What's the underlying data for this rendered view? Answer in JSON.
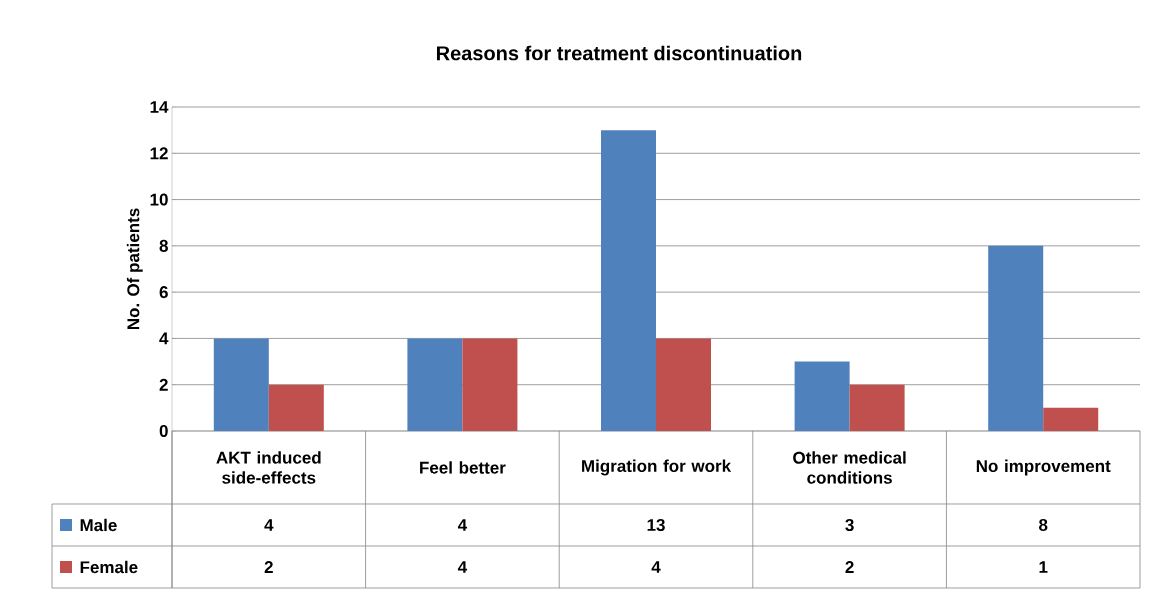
{
  "chart_data": {
    "type": "bar",
    "title": "Reasons for treatment discontinuation",
    "ylabel": "No. Of patients",
    "categories": [
      "AKT induced side-effects",
      "Feel better",
      "Migration for work",
      "Other medical conditions",
      "No improvement"
    ],
    "series": [
      {
        "name": "Male",
        "color": "#4f81bd",
        "values": [
          4,
          4,
          13,
          3,
          8
        ]
      },
      {
        "name": "Female",
        "color": "#c0504d",
        "values": [
          2,
          4,
          4,
          2,
          1
        ]
      }
    ],
    "ylim": [
      0,
      14
    ],
    "yticks": [
      0,
      2,
      4,
      6,
      8,
      10,
      12,
      14
    ],
    "grid": "y",
    "legend": "bottom",
    "data_labels": true
  }
}
